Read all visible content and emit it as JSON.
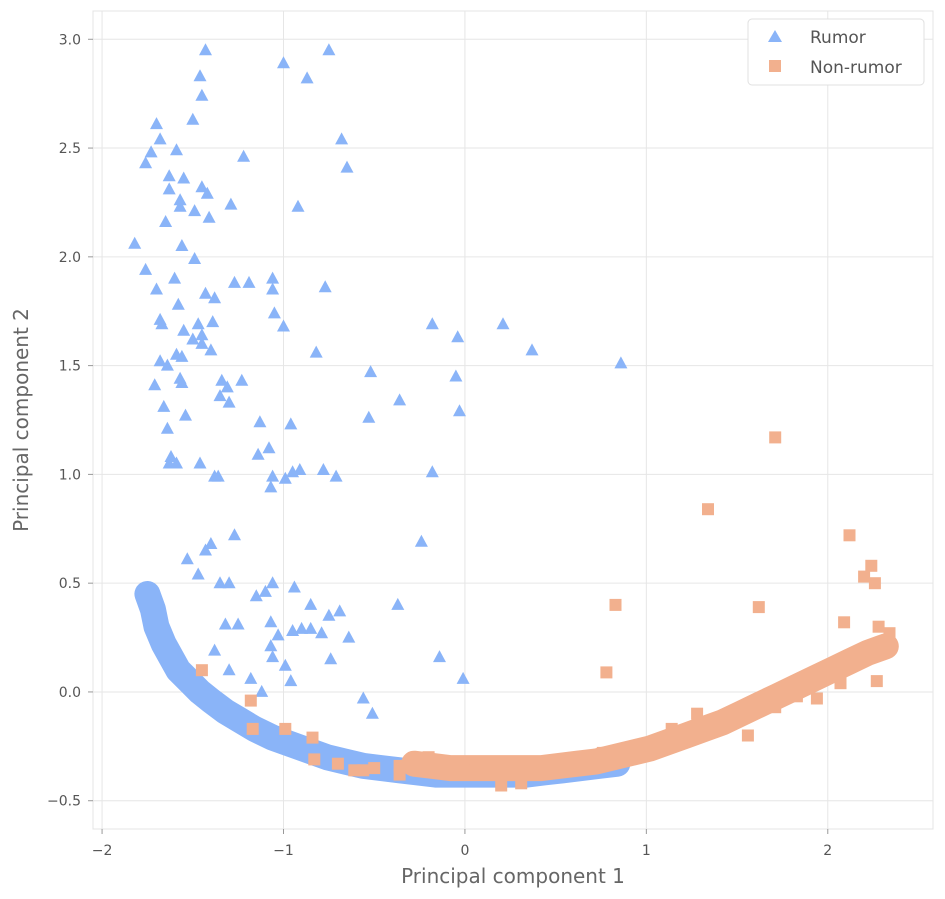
{
  "chart_data": {
    "type": "scatter",
    "xlabel": "Principal component 1",
    "ylabel": "Principal component 2",
    "xlim": [
      -2.05,
      2.58
    ],
    "ylim": [
      -0.63,
      3.13
    ],
    "xticks": [
      -2,
      -1,
      0,
      1,
      2
    ],
    "yticks": [
      -0.5,
      0.0,
      0.5,
      1.0,
      1.5,
      2.0,
      2.5,
      3.0
    ],
    "xtick_labels": [
      "−2",
      "−1",
      "0",
      "1",
      "2"
    ],
    "ytick_labels": [
      "−0.5",
      "0.0",
      "0.5",
      "1.0",
      "1.5",
      "2.0",
      "2.5",
      "3.0"
    ],
    "grid": true,
    "legend_position": "top-right",
    "series": [
      {
        "name": "Rumor",
        "marker": "triangle",
        "color": "#8ab4f8",
        "points": [
          [
            -1.43,
            2.95
          ],
          [
            -1.46,
            2.83
          ],
          [
            -1.45,
            2.74
          ],
          [
            -1.5,
            2.63
          ],
          [
            -1.7,
            2.61
          ],
          [
            -1.73,
            2.48
          ],
          [
            -1.76,
            2.43
          ],
          [
            -1.68,
            2.54
          ],
          [
            -1.59,
            2.49
          ],
          [
            -1.63,
            2.37
          ],
          [
            -1.55,
            2.36
          ],
          [
            -1.63,
            2.31
          ],
          [
            -1.45,
            2.32
          ],
          [
            -1.42,
            2.29
          ],
          [
            -1.57,
            2.26
          ],
          [
            -1.57,
            2.23
          ],
          [
            -1.49,
            2.21
          ],
          [
            -1.41,
            2.18
          ],
          [
            -1.65,
            2.16
          ],
          [
            -1.82,
            2.06
          ],
          [
            -1.56,
            2.05
          ],
          [
            -1.49,
            1.99
          ],
          [
            -1.76,
            1.94
          ],
          [
            -1.6,
            1.9
          ],
          [
            -1.7,
            1.85
          ],
          [
            -1.43,
            1.83
          ],
          [
            -1.38,
            1.81
          ],
          [
            -1.58,
            1.78
          ],
          [
            -1.68,
            1.71
          ],
          [
            -1.67,
            1.69
          ],
          [
            -1.55,
            1.66
          ],
          [
            -1.47,
            1.69
          ],
          [
            -1.39,
            1.7
          ],
          [
            -1.45,
            1.64
          ],
          [
            -1.5,
            1.62
          ],
          [
            -1.45,
            1.6
          ],
          [
            -1.4,
            1.57
          ],
          [
            -1.59,
            1.55
          ],
          [
            -1.56,
            1.54
          ],
          [
            -1.68,
            1.52
          ],
          [
            -1.64,
            1.5
          ],
          [
            -1.57,
            1.44
          ],
          [
            -1.56,
            1.42
          ],
          [
            -1.71,
            1.41
          ],
          [
            -1.34,
            1.43
          ],
          [
            -1.31,
            1.4
          ],
          [
            -1.35,
            1.36
          ],
          [
            -1.3,
            1.33
          ],
          [
            -1.66,
            1.31
          ],
          [
            -1.54,
            1.27
          ],
          [
            -1.64,
            1.21
          ],
          [
            -1.62,
            1.08
          ],
          [
            -1.63,
            1.05
          ],
          [
            -1.59,
            1.05
          ],
          [
            -1.46,
            1.05
          ],
          [
            -1.38,
            0.99
          ],
          [
            -1.36,
            0.99
          ],
          [
            -1.29,
            2.24
          ],
          [
            -1.22,
            2.46
          ],
          [
            -1.0,
            2.89
          ],
          [
            -0.87,
            2.82
          ],
          [
            -0.75,
            2.95
          ],
          [
            -0.68,
            2.54
          ],
          [
            -0.65,
            2.41
          ],
          [
            -0.92,
            2.23
          ],
          [
            -1.27,
            1.88
          ],
          [
            -1.19,
            1.88
          ],
          [
            -1.06,
            1.9
          ],
          [
            -1.06,
            1.85
          ],
          [
            -1.05,
            1.74
          ],
          [
            -1.0,
            1.68
          ],
          [
            -0.77,
            1.86
          ],
          [
            -0.82,
            1.56
          ],
          [
            -0.52,
            1.47
          ],
          [
            -1.23,
            1.43
          ],
          [
            -1.13,
            1.24
          ],
          [
            -0.96,
            1.23
          ],
          [
            -1.08,
            1.12
          ],
          [
            -1.14,
            1.09
          ],
          [
            -1.06,
            0.99
          ],
          [
            -1.07,
            0.94
          ],
          [
            -0.99,
            0.98
          ],
          [
            -0.95,
            1.01
          ],
          [
            -0.91,
            1.02
          ],
          [
            -0.78,
            1.02
          ],
          [
            -0.71,
            0.99
          ],
          [
            -0.53,
            1.26
          ],
          [
            -0.36,
            1.34
          ],
          [
            -0.18,
            1.69
          ],
          [
            -0.04,
            1.63
          ],
          [
            -0.05,
            1.45
          ],
          [
            -0.03,
            1.29
          ],
          [
            -0.18,
            1.01
          ],
          [
            0.21,
            1.69
          ],
          [
            0.37,
            1.57
          ],
          [
            0.86,
            1.51
          ],
          [
            -0.24,
            0.69
          ],
          [
            -1.4,
            0.68
          ],
          [
            -1.43,
            0.65
          ],
          [
            -1.53,
            0.61
          ],
          [
            -1.47,
            0.54
          ],
          [
            -1.27,
            0.72
          ],
          [
            -1.35,
            0.5
          ],
          [
            -1.3,
            0.5
          ],
          [
            -1.1,
            0.46
          ],
          [
            -1.15,
            0.44
          ],
          [
            -1.06,
            0.5
          ],
          [
            -0.94,
            0.48
          ],
          [
            -0.85,
            0.4
          ],
          [
            -0.75,
            0.35
          ],
          [
            -0.69,
            0.37
          ],
          [
            -0.79,
            0.27
          ],
          [
            -0.64,
            0.25
          ],
          [
            -0.9,
            0.29
          ],
          [
            -0.95,
            0.28
          ],
          [
            -0.85,
            0.29
          ],
          [
            -0.37,
            0.4
          ],
          [
            -0.14,
            0.16
          ],
          [
            -0.01,
            0.06
          ],
          [
            -1.07,
            0.32
          ],
          [
            -1.03,
            0.26
          ],
          [
            -1.07,
            0.21
          ],
          [
            -1.06,
            0.16
          ],
          [
            -0.99,
            0.12
          ],
          [
            -0.96,
            0.05
          ],
          [
            -0.74,
            0.15
          ],
          [
            -0.56,
            -0.03
          ],
          [
            -0.51,
            -0.1
          ],
          [
            -1.25,
            0.31
          ],
          [
            -1.32,
            0.31
          ],
          [
            -1.38,
            0.19
          ],
          [
            -1.3,
            0.1
          ],
          [
            -1.18,
            0.06
          ],
          [
            -1.12,
            0.0
          ]
        ],
        "band": [
          [
            -1.75,
            0.45
          ],
          [
            -1.72,
            0.38
          ],
          [
            -1.7,
            0.3
          ],
          [
            -1.66,
            0.22
          ],
          [
            -1.62,
            0.16
          ],
          [
            -1.58,
            0.1
          ],
          [
            -1.52,
            0.05
          ],
          [
            -1.46,
            0.0
          ],
          [
            -1.4,
            -0.04
          ],
          [
            -1.32,
            -0.09
          ],
          [
            -1.24,
            -0.13
          ],
          [
            -1.16,
            -0.17
          ],
          [
            -1.06,
            -0.21
          ],
          [
            -0.96,
            -0.24
          ],
          [
            -0.86,
            -0.27
          ],
          [
            -0.76,
            -0.3
          ],
          [
            -0.66,
            -0.32
          ],
          [
            -0.56,
            -0.34
          ],
          [
            -0.46,
            -0.35
          ],
          [
            -0.36,
            -0.36
          ],
          [
            -0.26,
            -0.37
          ],
          [
            -0.16,
            -0.38
          ],
          [
            -0.06,
            -0.38
          ],
          [
            0.04,
            -0.38
          ],
          [
            0.14,
            -0.38
          ],
          [
            0.24,
            -0.38
          ],
          [
            0.34,
            -0.38
          ],
          [
            0.44,
            -0.37
          ],
          [
            0.54,
            -0.36
          ],
          [
            0.64,
            -0.35
          ],
          [
            0.74,
            -0.34
          ],
          [
            0.84,
            -0.33
          ]
        ]
      },
      {
        "name": "Non-rumor",
        "marker": "square",
        "color": "#f2b08e",
        "points": [
          [
            1.71,
            1.17
          ],
          [
            1.34,
            0.84
          ],
          [
            2.12,
            0.72
          ],
          [
            2.24,
            0.58
          ],
          [
            2.2,
            0.53
          ],
          [
            2.26,
            0.5
          ],
          [
            0.83,
            0.4
          ],
          [
            1.62,
            0.39
          ],
          [
            2.09,
            0.32
          ],
          [
            2.28,
            0.3
          ],
          [
            2.34,
            0.27
          ],
          [
            0.78,
            0.09
          ],
          [
            2.27,
            0.05
          ],
          [
            -1.45,
            0.1
          ],
          [
            -1.18,
            -0.04
          ],
          [
            -1.17,
            -0.17
          ],
          [
            -0.99,
            -0.17
          ],
          [
            -0.84,
            -0.21
          ],
          [
            -0.83,
            -0.31
          ],
          [
            -0.7,
            -0.33
          ],
          [
            -0.61,
            -0.36
          ],
          [
            -0.56,
            -0.36
          ],
          [
            -0.5,
            -0.35
          ],
          [
            -0.36,
            -0.34
          ],
          [
            -0.36,
            -0.38
          ],
          [
            -0.2,
            -0.3
          ],
          [
            -0.23,
            -0.36
          ],
          [
            -0.09,
            -0.35
          ],
          [
            0.0,
            -0.36
          ],
          [
            0.06,
            -0.32
          ],
          [
            0.13,
            -0.38
          ],
          [
            0.2,
            -0.43
          ],
          [
            0.31,
            -0.42
          ],
          [
            0.4,
            -0.37
          ],
          [
            0.56,
            -0.35
          ],
          [
            0.67,
            -0.33
          ],
          [
            0.76,
            -0.28
          ],
          [
            0.9,
            -0.27
          ],
          [
            1.01,
            -0.24
          ],
          [
            1.14,
            -0.17
          ],
          [
            1.28,
            -0.1
          ],
          [
            1.37,
            -0.18
          ],
          [
            1.46,
            -0.14
          ],
          [
            1.56,
            -0.2
          ],
          [
            1.71,
            -0.07
          ],
          [
            1.83,
            -0.02
          ],
          [
            1.94,
            -0.03
          ],
          [
            2.07,
            0.04
          ]
        ],
        "band": [
          [
            -0.28,
            -0.33
          ],
          [
            -0.18,
            -0.34
          ],
          [
            -0.08,
            -0.35
          ],
          [
            0.02,
            -0.35
          ],
          [
            0.12,
            -0.35
          ],
          [
            0.22,
            -0.35
          ],
          [
            0.32,
            -0.35
          ],
          [
            0.42,
            -0.35
          ],
          [
            0.52,
            -0.34
          ],
          [
            0.62,
            -0.33
          ],
          [
            0.72,
            -0.32
          ],
          [
            0.82,
            -0.3
          ],
          [
            0.92,
            -0.28
          ],
          [
            1.02,
            -0.26
          ],
          [
            1.12,
            -0.23
          ],
          [
            1.22,
            -0.2
          ],
          [
            1.32,
            -0.17
          ],
          [
            1.42,
            -0.14
          ],
          [
            1.52,
            -0.1
          ],
          [
            1.62,
            -0.06
          ],
          [
            1.72,
            -0.02
          ],
          [
            1.82,
            0.02
          ],
          [
            1.92,
            0.06
          ],
          [
            2.02,
            0.1
          ],
          [
            2.12,
            0.14
          ],
          [
            2.22,
            0.18
          ],
          [
            2.32,
            0.21
          ]
        ]
      }
    ]
  }
}
